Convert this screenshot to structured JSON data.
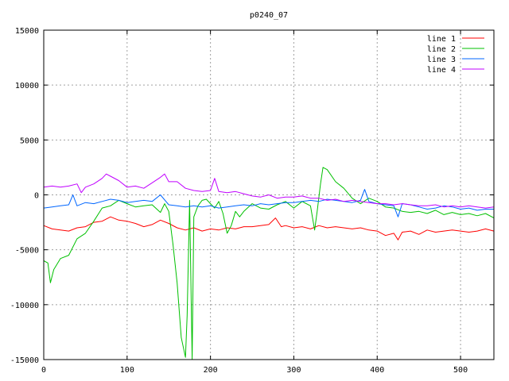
{
  "chart_data": {
    "type": "line",
    "title": "p0240_07",
    "xlabel": "",
    "ylabel": "",
    "xlim": [
      0,
      540
    ],
    "ylim": [
      -15000,
      15000
    ],
    "x_ticks": [
      0,
      100,
      200,
      300,
      400,
      500
    ],
    "y_ticks": [
      -15000,
      -10000,
      -5000,
      0,
      5000,
      10000,
      15000
    ],
    "grid": true,
    "legend_position": "top-right",
    "series": [
      {
        "name": "line 1",
        "color": "#ff0000",
        "x": [
          0,
          10,
          20,
          30,
          40,
          50,
          60,
          70,
          80,
          90,
          100,
          110,
          120,
          130,
          140,
          150,
          160,
          170,
          180,
          190,
          200,
          210,
          220,
          230,
          240,
          250,
          260,
          270,
          278,
          285,
          290,
          300,
          310,
          320,
          330,
          340,
          350,
          360,
          370,
          380,
          390,
          400,
          410,
          420,
          425,
          430,
          440,
          450,
          460,
          470,
          480,
          490,
          500,
          510,
          520,
          530,
          540
        ],
        "y": [
          -2800,
          -3100,
          -3200,
          -3300,
          -3000,
          -2900,
          -2500,
          -2400,
          -2000,
          -2300,
          -2400,
          -2600,
          -2900,
          -2700,
          -2300,
          -2600,
          -3000,
          -3200,
          -3000,
          -3300,
          -3100,
          -3200,
          -3000,
          -3100,
          -2900,
          -2900,
          -2800,
          -2700,
          -2100,
          -2900,
          -2800,
          -3000,
          -2900,
          -3100,
          -2800,
          -3000,
          -2900,
          -3000,
          -3100,
          -3000,
          -3200,
          -3300,
          -3700,
          -3500,
          -4100,
          -3400,
          -3300,
          -3600,
          -3200,
          -3400,
          -3300,
          -3200,
          -3300,
          -3400,
          -3300,
          -3100,
          -3300
        ]
      },
      {
        "name": "line 2",
        "color": "#00c000",
        "x": [
          0,
          5,
          8,
          12,
          20,
          30,
          40,
          50,
          60,
          70,
          80,
          90,
          100,
          110,
          120,
          130,
          140,
          145,
          150,
          155,
          160,
          165,
          170,
          172,
          175,
          178,
          180,
          185,
          190,
          195,
          200,
          205,
          210,
          215,
          220,
          225,
          230,
          235,
          240,
          250,
          260,
          270,
          280,
          290,
          300,
          310,
          320,
          325,
          328,
          332,
          335,
          340,
          350,
          360,
          370,
          380,
          390,
          400,
          410,
          420,
          430,
          440,
          450,
          460,
          470,
          480,
          490,
          500,
          510,
          520,
          530,
          540
        ],
        "y": [
          -6000,
          -6200,
          -8000,
          -6800,
          -5800,
          -5500,
          -4000,
          -3500,
          -2400,
          -1200,
          -1000,
          -500,
          -800,
          -1100,
          -1000,
          -900,
          -1600,
          -800,
          -1500,
          -4500,
          -8000,
          -13000,
          -14800,
          -11000,
          -500,
          -16000,
          -2000,
          -1000,
          -500,
          -400,
          -800,
          -1200,
          -600,
          -1700,
          -3500,
          -2800,
          -1500,
          -2000,
          -1500,
          -800,
          -1200,
          -1300,
          -900,
          -600,
          -1200,
          -600,
          -1000,
          -3200,
          -1500,
          1000,
          2500,
          2300,
          1200,
          600,
          -300,
          -800,
          -300,
          -600,
          -1100,
          -1200,
          -1500,
          -1600,
          -1500,
          -1700,
          -1400,
          -1800,
          -1600,
          -1800,
          -1700,
          -1900,
          -1700,
          -2100
        ]
      },
      {
        "name": "line 3",
        "color": "#0066ff",
        "x": [
          0,
          10,
          20,
          30,
          35,
          40,
          50,
          60,
          70,
          80,
          90,
          100,
          110,
          120,
          130,
          140,
          150,
          160,
          170,
          180,
          190,
          200,
          210,
          220,
          230,
          240,
          250,
          260,
          270,
          280,
          290,
          300,
          310,
          320,
          330,
          340,
          350,
          360,
          370,
          380,
          385,
          390,
          400,
          410,
          420,
          425,
          430,
          440,
          450,
          460,
          470,
          480,
          490,
          500,
          510,
          520,
          530,
          540
        ],
        "y": [
          -1200,
          -1100,
          -1000,
          -900,
          0,
          -1000,
          -700,
          -800,
          -600,
          -400,
          -500,
          -700,
          -600,
          -500,
          -600,
          0,
          -900,
          -1000,
          -1100,
          -1000,
          -1100,
          -1000,
          -1200,
          -1100,
          -1000,
          -900,
          -1000,
          -800,
          -900,
          -800,
          -700,
          -700,
          -600,
          -500,
          -600,
          -400,
          -500,
          -600,
          -700,
          -500,
          500,
          -600,
          -800,
          -900,
          -1000,
          -2000,
          -800,
          -900,
          -1100,
          -1300,
          -1200,
          -1000,
          -1100,
          -1300,
          -1200,
          -1400,
          -1300,
          -1300
        ]
      },
      {
        "name": "line 4",
        "color": "#c000ff",
        "x": [
          0,
          10,
          20,
          30,
          40,
          45,
          50,
          60,
          70,
          75,
          80,
          90,
          100,
          110,
          120,
          130,
          140,
          145,
          150,
          160,
          170,
          180,
          190,
          200,
          205,
          210,
          220,
          230,
          240,
          250,
          260,
          270,
          280,
          290,
          300,
          310,
          320,
          330,
          340,
          350,
          360,
          370,
          380,
          390,
          400,
          410,
          420,
          430,
          440,
          450,
          460,
          470,
          480,
          490,
          500,
          510,
          520,
          530,
          540
        ],
        "y": [
          700,
          800,
          700,
          800,
          1000,
          200,
          700,
          1000,
          1500,
          1900,
          1700,
          1300,
          700,
          800,
          600,
          1100,
          1600,
          1900,
          1200,
          1200,
          600,
          400,
          300,
          400,
          1500,
          300,
          200,
          300,
          100,
          -100,
          -200,
          0,
          -300,
          -200,
          -200,
          -100,
          -300,
          -300,
          -500,
          -400,
          -600,
          -500,
          -600,
          -700,
          -800,
          -800,
          -900,
          -800,
          -900,
          -1000,
          -1000,
          -900,
          -1100,
          -1000,
          -1100,
          -1000,
          -1100,
          -1200,
          -1100
        ]
      }
    ]
  }
}
